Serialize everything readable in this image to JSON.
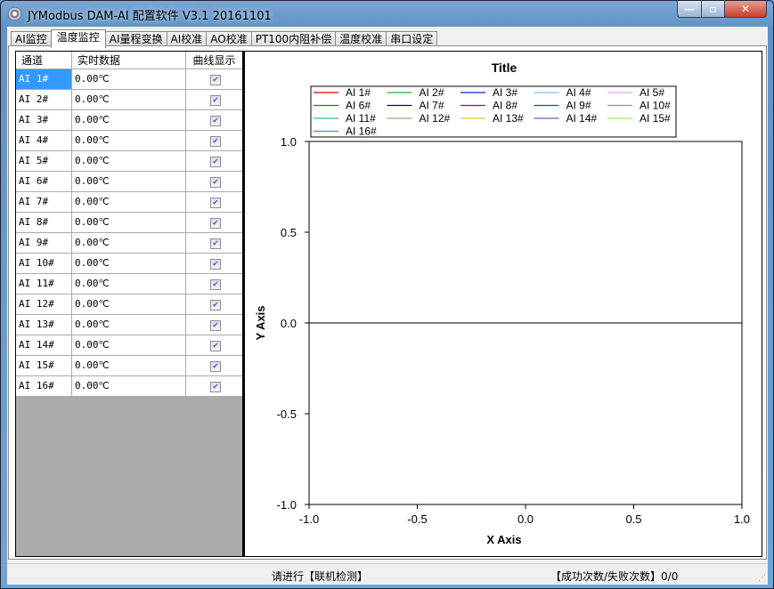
{
  "window": {
    "title": "JYModbus  DAM-AI 配置软件 V3.1   20161101",
    "minimize": "—",
    "maximize": "▫",
    "close": "✕"
  },
  "tabs": [
    {
      "label": "AI监控"
    },
    {
      "label": "温度监控",
      "active": true
    },
    {
      "label": "AI量程变换"
    },
    {
      "label": "AI校准"
    },
    {
      "label": "AO校准"
    },
    {
      "label": "PT100内阻补偿"
    },
    {
      "label": "温度校准"
    },
    {
      "label": "串口设定"
    }
  ],
  "table": {
    "headers": [
      "通道",
      "实时数据",
      "曲线显示"
    ],
    "rows": [
      {
        "channel": "AI 1#",
        "value": "0.00℃",
        "checked": true
      },
      {
        "channel": "AI 2#",
        "value": "0.00℃",
        "checked": true
      },
      {
        "channel": "AI 3#",
        "value": "0.00℃",
        "checked": true
      },
      {
        "channel": "AI 4#",
        "value": "0.00℃",
        "checked": true
      },
      {
        "channel": "AI 5#",
        "value": "0.00℃",
        "checked": true
      },
      {
        "channel": "AI 6#",
        "value": "0.00℃",
        "checked": true
      },
      {
        "channel": "AI 7#",
        "value": "0.00℃",
        "checked": true
      },
      {
        "channel": "AI 8#",
        "value": "0.00℃",
        "checked": true
      },
      {
        "channel": "AI 9#",
        "value": "0.00℃",
        "checked": true
      },
      {
        "channel": "AI 10#",
        "value": "0.00℃",
        "checked": true
      },
      {
        "channel": "AI 11#",
        "value": "0.00℃",
        "checked": true
      },
      {
        "channel": "AI 12#",
        "value": "0.00℃",
        "checked": true
      },
      {
        "channel": "AI 13#",
        "value": "0.00℃",
        "checked": true
      },
      {
        "channel": "AI 14#",
        "value": "0.00℃",
        "checked": true
      },
      {
        "channel": "AI 15#",
        "value": "0.00℃",
        "checked": true
      },
      {
        "channel": "AI 16#",
        "value": "0.00℃",
        "checked": true
      }
    ]
  },
  "chart_data": {
    "type": "line",
    "title": "Title",
    "xlabel": "X Axis",
    "ylabel": "Y Axis",
    "xlim": [
      -1,
      1
    ],
    "ylim": [
      -1,
      1
    ],
    "xticks": [
      "-1.0",
      "-0.5",
      "0.0",
      "0.5",
      "1.0"
    ],
    "yticks": [
      "1.0",
      "0.5",
      "0.0",
      "-0.5",
      "-1.0"
    ],
    "grid": false,
    "legend_placement": "top",
    "series": [
      {
        "name": "AI 1#",
        "color": "#e00000"
      },
      {
        "name": "AI 2#",
        "color": "#20b820"
      },
      {
        "name": "AI 3#",
        "color": "#0030d0"
      },
      {
        "name": "AI 4#",
        "color": "#80c0f0"
      },
      {
        "name": "AI 5#",
        "color": "#f0a0f0"
      },
      {
        "name": "AI 6#",
        "color": "#108810"
      },
      {
        "name": "AI 7#",
        "color": "#000090"
      },
      {
        "name": "AI 8#",
        "color": "#8800d0"
      },
      {
        "name": "AI 9#",
        "color": "#007000"
      },
      {
        "name": "AI 10#",
        "color": "#b070e0"
      },
      {
        "name": "AI 11#",
        "color": "#20c0a0"
      },
      {
        "name": "AI 12#",
        "color": "#90b070"
      },
      {
        "name": "AI 13#",
        "color": "#f0c040"
      },
      {
        "name": "AI 14#",
        "color": "#6060b0"
      },
      {
        "name": "AI 15#",
        "color": "#90f070"
      },
      {
        "name": "AI 16#",
        "color": "#20a0e0"
      }
    ]
  },
  "status": {
    "hint": "请进行【联机检测】",
    "counter": "【成功次数/失败次数】0/0"
  }
}
